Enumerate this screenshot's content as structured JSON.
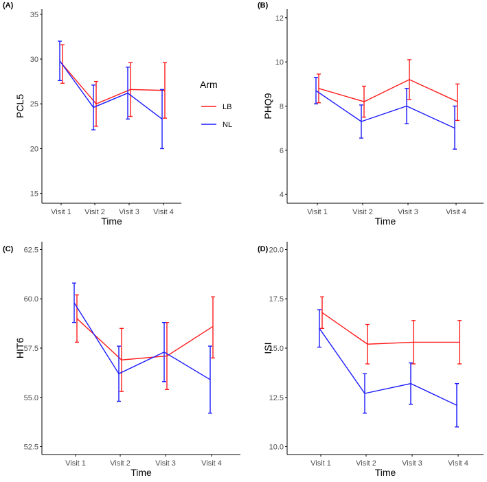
{
  "colors": {
    "LB": "#ff1a1a",
    "NL": "#1a1aff",
    "axis": "#000000",
    "tick_label": "#4d4d4d"
  },
  "legend": {
    "title": "Arm",
    "entries": [
      {
        "key": "LB",
        "label": "LB"
      },
      {
        "key": "NL",
        "label": "NL"
      }
    ]
  },
  "chart_data": [
    {
      "type": "line",
      "panel": "(A)",
      "title": "",
      "xlabel": "Time",
      "ylabel": "PCL5",
      "categories": [
        "Visit 1",
        "Visit 2",
        "Visit 3",
        "Visit 4"
      ],
      "ylim": [
        13.9,
        35.6
      ],
      "yticks": [
        "15",
        "20",
        "25",
        "30",
        "35"
      ],
      "ytick_values": [
        15,
        20,
        25,
        30,
        35
      ],
      "series": [
        {
          "name": "LB",
          "values": [
            29.4,
            25.0,
            26.6,
            26.5
          ],
          "lower": [
            27.3,
            22.5,
            23.6,
            23.4
          ],
          "upper": [
            31.6,
            27.5,
            29.6,
            29.6
          ]
        },
        {
          "name": "NL",
          "values": [
            29.8,
            24.6,
            26.2,
            23.3
          ],
          "lower": [
            27.6,
            22.1,
            23.3,
            20.0
          ],
          "upper": [
            32.0,
            27.1,
            29.1,
            26.6
          ]
        }
      ]
    },
    {
      "type": "line",
      "panel": "(B)",
      "title": "",
      "xlabel": "Time",
      "ylabel": "PHQ9",
      "categories": [
        "Visit 1",
        "Visit 2",
        "Visit 3",
        "Visit 4"
      ],
      "ylim": [
        3.6,
        12.4
      ],
      "yticks": [
        "4",
        "6",
        "8",
        "10",
        "12"
      ],
      "ytick_values": [
        4,
        6,
        8,
        10,
        12
      ],
      "series": [
        {
          "name": "LB",
          "values": [
            8.8,
            8.2,
            9.2,
            8.2
          ],
          "lower": [
            8.15,
            7.5,
            8.3,
            7.35
          ],
          "upper": [
            9.45,
            8.9,
            10.1,
            9.0
          ]
        },
        {
          "name": "NL",
          "values": [
            8.7,
            7.3,
            8.0,
            7.0
          ],
          "lower": [
            8.1,
            6.55,
            7.2,
            6.05
          ],
          "upper": [
            9.3,
            8.05,
            8.8,
            8.0
          ]
        }
      ]
    },
    {
      "type": "line",
      "panel": "(C)",
      "title": "",
      "xlabel": "Time",
      "ylabel": "HIT6",
      "categories": [
        "Visit 1",
        "Visit 2",
        "Visit 3",
        "Visit 4"
      ],
      "ylim": [
        52.1,
        62.9
      ],
      "yticks": [
        "52.5",
        "55.0",
        "57.5",
        "60.0",
        "62.5"
      ],
      "ytick_values": [
        52.5,
        55.0,
        57.5,
        60.0,
        62.5
      ],
      "series": [
        {
          "name": "LB",
          "values": [
            59.0,
            56.9,
            57.1,
            58.6
          ],
          "lower": [
            57.8,
            55.3,
            55.4,
            57.0
          ],
          "upper": [
            60.2,
            58.5,
            58.8,
            60.1
          ]
        },
        {
          "name": "NL",
          "values": [
            59.8,
            56.2,
            57.3,
            55.9
          ],
          "lower": [
            58.8,
            54.8,
            55.8,
            54.2
          ],
          "upper": [
            60.8,
            57.6,
            58.8,
            57.6
          ]
        }
      ]
    },
    {
      "type": "line",
      "panel": "(D)",
      "title": "",
      "xlabel": "Time",
      "ylabel": "ISI",
      "categories": [
        "Visit 1",
        "Visit 2",
        "Visit 3",
        "Visit 4"
      ],
      "ylim": [
        9.6,
        20.4
      ],
      "yticks": [
        "10.0",
        "12.5",
        "15.0",
        "17.5",
        "20.0"
      ],
      "ytick_values": [
        10.0,
        12.5,
        15.0,
        17.5,
        20.0
      ],
      "series": [
        {
          "name": "LB",
          "values": [
            16.8,
            15.2,
            15.3,
            15.3
          ],
          "lower": [
            16.0,
            14.2,
            14.2,
            14.2
          ],
          "upper": [
            17.6,
            16.2,
            16.4,
            16.4
          ]
        },
        {
          "name": "NL",
          "values": [
            16.0,
            12.7,
            13.2,
            12.1
          ],
          "lower": [
            15.05,
            11.7,
            12.15,
            11.0
          ],
          "upper": [
            16.95,
            13.7,
            14.25,
            13.2
          ]
        }
      ]
    }
  ]
}
